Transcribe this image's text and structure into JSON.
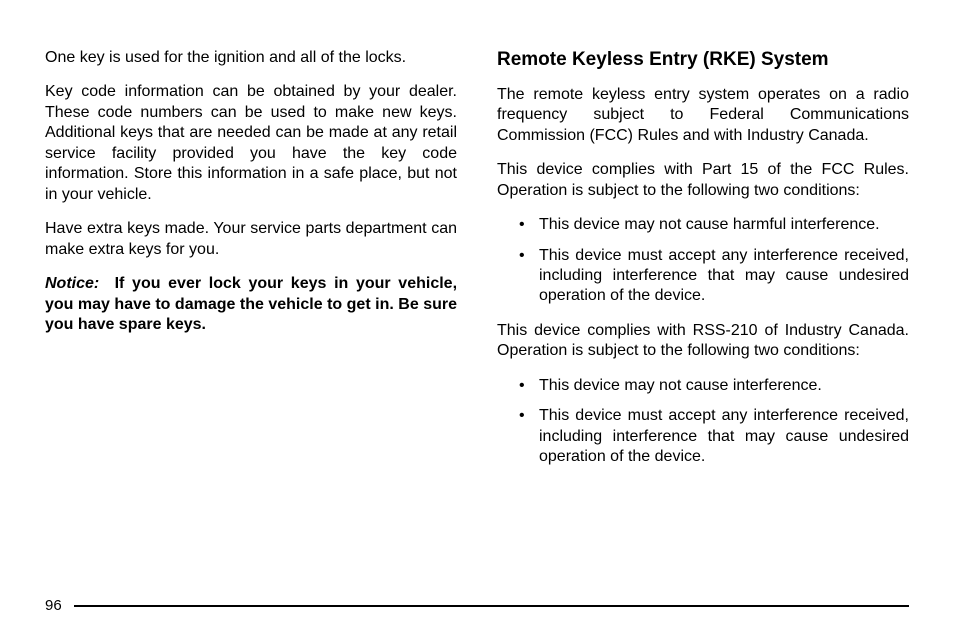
{
  "page": {
    "number": "96"
  },
  "left": {
    "p1": "One key is used for the ignition and all of the locks.",
    "p2": "Key code information can be obtained by your dealer. These code numbers can be used to make new keys. Additional keys that are needed can be made at any retail service facility provided you have the key code information. Store this information in a safe place, but not in your vehicle.",
    "p3": "Have extra keys made. Your service parts department can make extra keys for you.",
    "noticeLabel": "Notice:",
    "noticeBody": "If you ever lock your keys in your vehicle, you may have to damage the vehicle to get in. Be sure you have spare keys."
  },
  "right": {
    "heading": "Remote Keyless Entry (RKE) System",
    "p1": "The remote keyless entry system operates on a radio frequency subject to Federal Communications Commission (FCC) Rules and with Industry Canada.",
    "p2": "This device complies with Part 15 of the FCC Rules. Operation is subject to the following two conditions:",
    "list1": {
      "a": "This device may not cause harmful interference.",
      "b": "This device must accept any interference received, including interference that may cause undesired operation of the device."
    },
    "p3": "This device complies with RSS-210 of Industry Canada. Operation is subject to the following two conditions:",
    "list2": {
      "a": "This device may not cause interference.",
      "b": "This device must accept any interference received, including interference that may cause undesired operation of the device."
    }
  }
}
